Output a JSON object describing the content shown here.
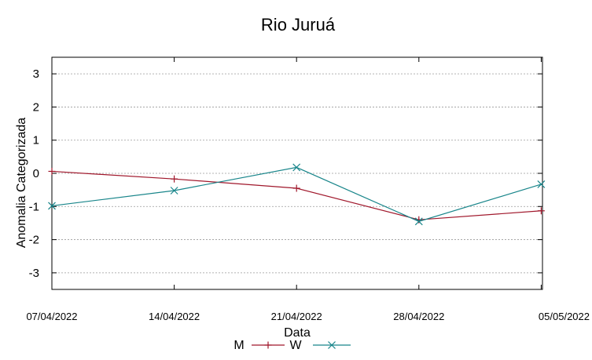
{
  "chart_data": {
    "type": "line",
    "title": "Rio Juruá",
    "xlabel": "Data",
    "ylabel": "Anomalia Categorizada",
    "categories": [
      "07/04/2022",
      "14/04/2022",
      "21/04/2022",
      "28/04/2022",
      "05/05/2022"
    ],
    "yticks": [
      3,
      2,
      1,
      0,
      -1,
      -2,
      -3
    ],
    "ylim": [
      -3.5,
      3.5
    ],
    "grid": true,
    "legend_position": "bottom",
    "series": [
      {
        "name": "M",
        "color": "#a0172b",
        "marker": "plus",
        "values": [
          0.06,
          -0.17,
          -0.45,
          -1.4,
          -1.13
        ]
      },
      {
        "name": "W",
        "color": "#18858a",
        "marker": "x",
        "values": [
          -0.98,
          -0.52,
          0.18,
          -1.45,
          -0.33
        ]
      }
    ]
  }
}
